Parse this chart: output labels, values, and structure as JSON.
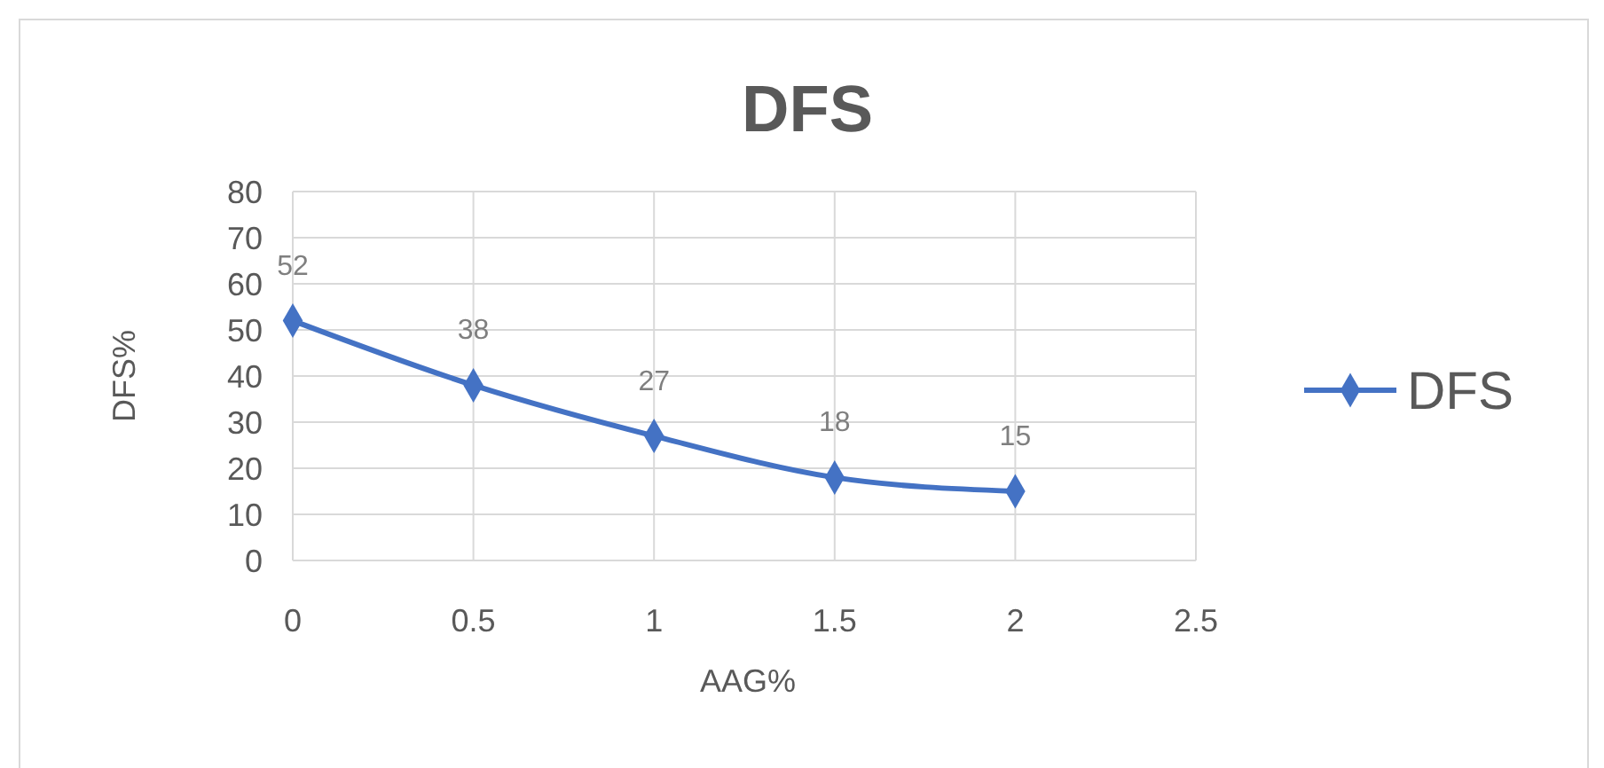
{
  "chart_data": {
    "type": "line",
    "title": "DFS",
    "xlabel": "AAG%",
    "ylabel": "DFS%",
    "x": [
      0,
      0.5,
      1,
      1.5,
      2
    ],
    "series": [
      {
        "name": "DFS",
        "color": "#4472c4",
        "values": [
          52,
          38,
          27,
          18,
          15
        ]
      }
    ],
    "xlim": [
      0,
      2.5
    ],
    "xticks": [
      0,
      0.5,
      1,
      1.5,
      2,
      2.5
    ],
    "ylim": [
      0,
      80
    ],
    "yticks": [
      0,
      10,
      20,
      30,
      40,
      50,
      60,
      70,
      80
    ],
    "grid": true,
    "legend": "right",
    "marker": "diamond",
    "line_style": "solid",
    "data_labels": true
  }
}
